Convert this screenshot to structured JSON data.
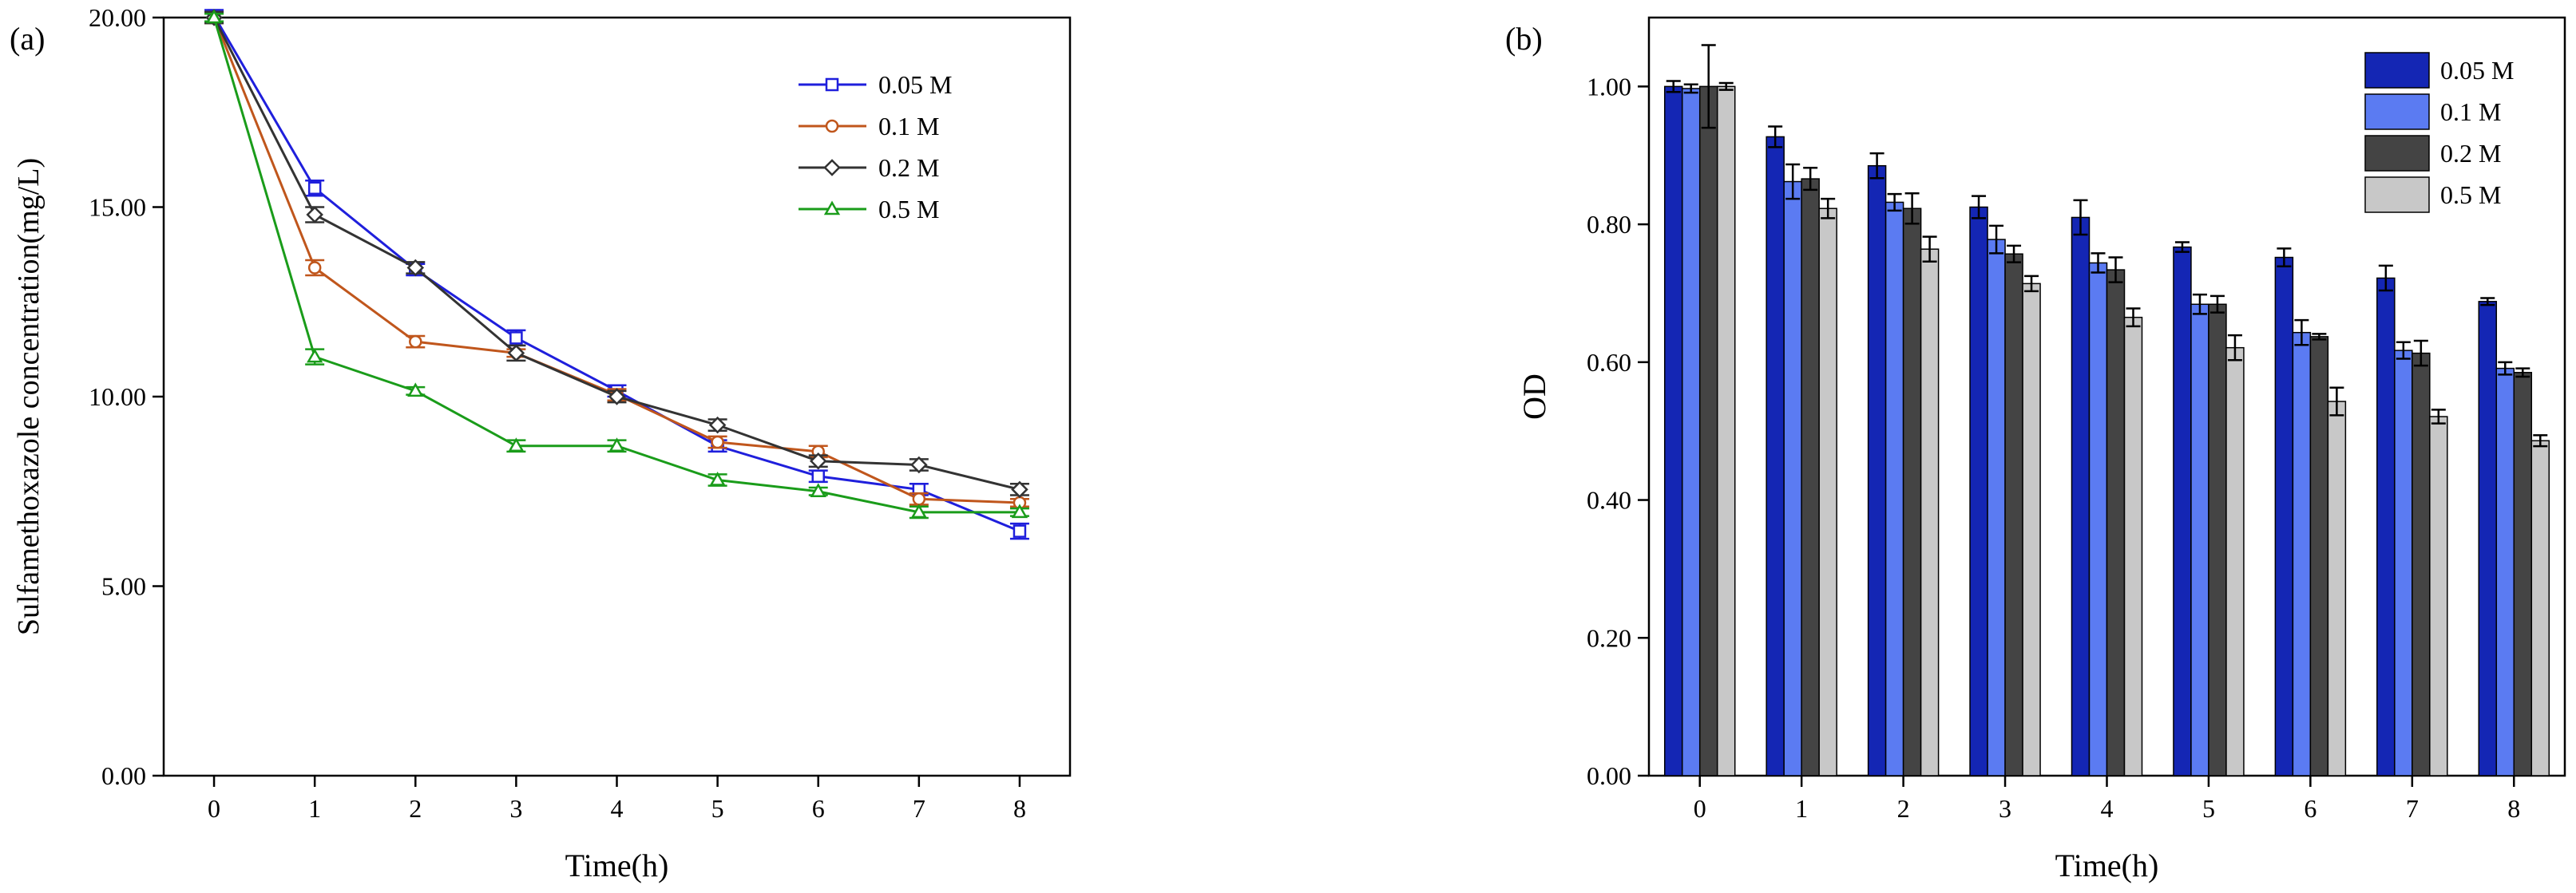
{
  "panel_labels": {
    "a": "(a)",
    "b": "(b)"
  },
  "chart_data": [
    {
      "type": "line",
      "panel": "(a)",
      "xlabel": "Time(h)",
      "ylabel": "Sulfamethoxazole concentration(mg/L)",
      "xlim": [
        -0.5,
        8.5
      ],
      "ylim": [
        0,
        20
      ],
      "x": [
        0,
        1,
        2,
        3,
        4,
        5,
        6,
        7,
        8
      ],
      "x_tick_labels": [
        "0",
        "1",
        "2",
        "3",
        "4",
        "5",
        "6",
        "7",
        "8"
      ],
      "y_ticks": [
        0,
        5,
        10,
        15,
        20
      ],
      "y_tick_labels": [
        "0.00",
        "5.00",
        "10.00",
        "15.00",
        "20.00"
      ],
      "legend_position": "top-right",
      "series": [
        {
          "name": "0.05 M",
          "color": "#1f1fdc",
          "marker": "square",
          "values": [
            20.05,
            15.5,
            13.35,
            11.55,
            10.15,
            8.7,
            7.9,
            7.55,
            6.45
          ],
          "errors": [
            0.15,
            0.2,
            0.15,
            0.2,
            0.15,
            0.15,
            0.15,
            0.15,
            0.2
          ]
        },
        {
          "name": "0.1 M",
          "color": "#c0561c",
          "marker": "circle",
          "values": [
            20.0,
            13.4,
            11.45,
            11.15,
            10.05,
            8.8,
            8.55,
            7.3,
            7.2
          ],
          "errors": [
            0.15,
            0.2,
            0.15,
            0.1,
            0.15,
            0.15,
            0.15,
            0.15,
            0.1
          ]
        },
        {
          "name": "0.2 M",
          "color": "#333333",
          "marker": "diamond",
          "values": [
            20.0,
            14.8,
            13.4,
            11.15,
            10.0,
            9.25,
            8.3,
            8.2,
            7.55
          ],
          "errors": [
            0.15,
            0.2,
            0.15,
            0.2,
            0.15,
            0.15,
            0.15,
            0.15,
            0.15
          ]
        },
        {
          "name": "0.5 M",
          "color": "#1a9c1a",
          "marker": "triangle",
          "values": [
            20.0,
            11.05,
            10.15,
            8.7,
            8.7,
            7.8,
            7.5,
            6.95,
            6.95
          ],
          "errors": [
            0.1,
            0.2,
            0.1,
            0.15,
            0.15,
            0.15,
            0.1,
            0.15,
            0.1
          ]
        }
      ]
    },
    {
      "type": "bar",
      "panel": "(b)",
      "xlabel": "Time(h)",
      "ylabel": "OD",
      "categories": [
        "0",
        "1",
        "2",
        "3",
        "4",
        "5",
        "6",
        "7",
        "8"
      ],
      "ylim": [
        0,
        1.1
      ],
      "y_ticks": [
        0,
        0.2,
        0.4,
        0.6,
        0.8,
        1.0
      ],
      "y_tick_labels": [
        "0.00",
        "0.20",
        "0.40",
        "0.60",
        "0.80",
        "1.00"
      ],
      "legend_position": "top-right",
      "series": [
        {
          "name": "0.05 M",
          "color": "#1426b4",
          "values": [
            1.0,
            0.927,
            0.885,
            0.825,
            0.81,
            0.767,
            0.752,
            0.722,
            0.688
          ],
          "errors": [
            0.008,
            0.015,
            0.018,
            0.016,
            0.025,
            0.007,
            0.013,
            0.018,
            0.005
          ]
        },
        {
          "name": "0.1 M",
          "color": "#5b7bf2",
          "values": [
            0.997,
            0.862,
            0.832,
            0.778,
            0.744,
            0.684,
            0.643,
            0.617,
            0.591
          ],
          "errors": [
            0.006,
            0.025,
            0.012,
            0.02,
            0.014,
            0.014,
            0.018,
            0.012,
            0.009
          ]
        },
        {
          "name": "0.2 M",
          "color": "#444444",
          "values": [
            1.0,
            0.866,
            0.823,
            0.757,
            0.734,
            0.684,
            0.637,
            0.613,
            0.585
          ],
          "errors": [
            0.06,
            0.016,
            0.022,
            0.012,
            0.018,
            0.012,
            0.004,
            0.018,
            0.006
          ]
        },
        {
          "name": "0.5 M",
          "color": "#c8c8c8",
          "values": [
            1.0,
            0.823,
            0.764,
            0.714,
            0.665,
            0.621,
            0.543,
            0.521,
            0.486
          ],
          "errors": [
            0.005,
            0.014,
            0.018,
            0.011,
            0.013,
            0.018,
            0.02,
            0.01,
            0.008
          ]
        }
      ]
    }
  ]
}
